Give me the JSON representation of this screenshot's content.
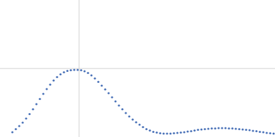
{
  "chart_data": {
    "type": "scatter",
    "color": "#4a72b8",
    "marker": "circle",
    "grid": true,
    "tick_labels": false,
    "xlim": [
      0,
      4
    ],
    "ylim": [
      0,
      2
    ],
    "xticks": [
      1.15
    ],
    "yticks": [
      1.0
    ],
    "x": [
      0.18,
      0.23,
      0.28,
      0.33,
      0.38,
      0.43,
      0.48,
      0.53,
      0.58,
      0.63,
      0.68,
      0.73,
      0.78,
      0.83,
      0.88,
      0.93,
      0.98,
      1.03,
      1.08,
      1.13,
      1.18,
      1.23,
      1.28,
      1.33,
      1.38,
      1.43,
      1.48,
      1.53,
      1.58,
      1.63,
      1.68,
      1.73,
      1.78,
      1.83,
      1.88,
      1.93,
      1.98,
      2.03,
      2.08,
      2.13,
      2.18,
      2.23,
      2.28,
      2.33,
      2.38,
      2.43,
      2.48,
      2.53,
      2.58,
      2.63,
      2.68,
      2.73,
      2.78,
      2.83,
      2.88,
      2.93,
      2.98,
      3.03,
      3.08,
      3.13,
      3.18,
      3.23,
      3.28,
      3.33,
      3.38,
      3.43,
      3.48,
      3.53,
      3.58,
      3.63,
      3.68,
      3.73,
      3.78,
      3.83,
      3.88,
      3.93,
      3.98
    ],
    "values": [
      0.07,
      0.115,
      0.16,
      0.21,
      0.27,
      0.335,
      0.405,
      0.48,
      0.555,
      0.63,
      0.7,
      0.765,
      0.825,
      0.875,
      0.915,
      0.945,
      0.965,
      0.975,
      0.98,
      0.98,
      0.975,
      0.96,
      0.935,
      0.9,
      0.855,
      0.805,
      0.75,
      0.695,
      0.64,
      0.58,
      0.52,
      0.46,
      0.405,
      0.35,
      0.3,
      0.255,
      0.215,
      0.18,
      0.145,
      0.115,
      0.095,
      0.075,
      0.065,
      0.055,
      0.05,
      0.05,
      0.05,
      0.055,
      0.06,
      0.065,
      0.07,
      0.08,
      0.085,
      0.095,
      0.105,
      0.11,
      0.115,
      0.12,
      0.125,
      0.125,
      0.13,
      0.13,
      0.13,
      0.125,
      0.125,
      0.12,
      0.115,
      0.11,
      0.105,
      0.1,
      0.09,
      0.085,
      0.075,
      0.07,
      0.06,
      0.055,
      0.05
    ]
  }
}
